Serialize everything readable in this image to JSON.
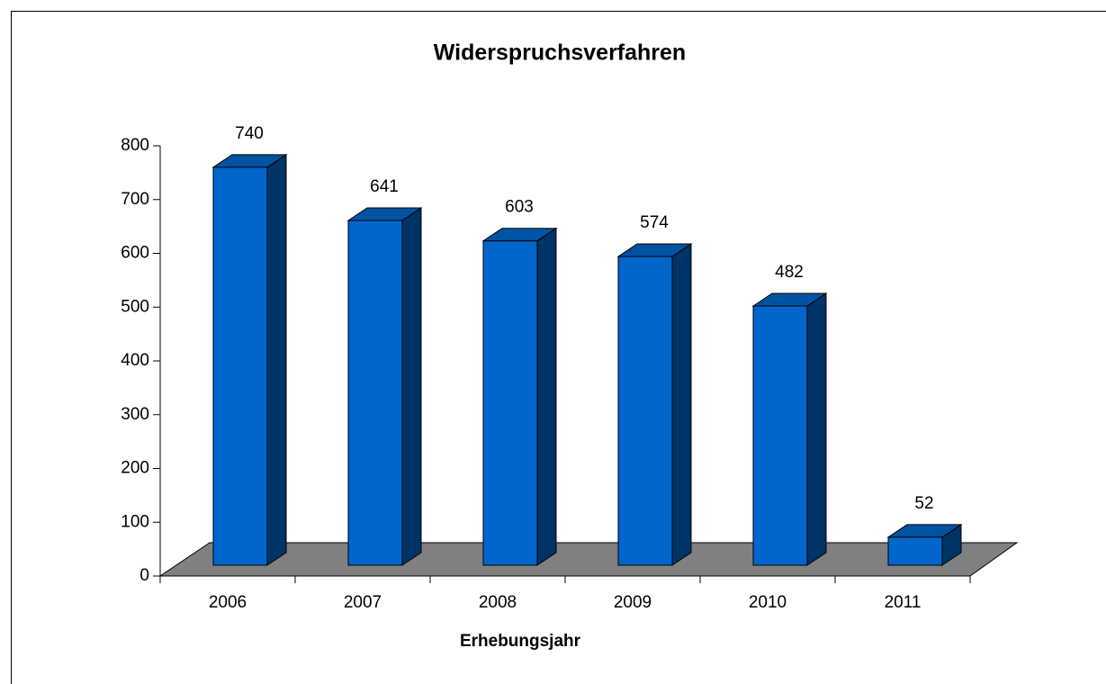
{
  "chart_data": {
    "type": "bar3d",
    "title": "Widerspruchsverfahren",
    "x_label": "Erhebungsjahr",
    "categories": [
      "2006",
      "2007",
      "2008",
      "2009",
      "2010",
      "2011"
    ],
    "values": [
      740,
      641,
      603,
      574,
      482,
      52
    ],
    "color": "#0066cc",
    "ylim": [
      0,
      800
    ],
    "yticks": [
      0,
      100,
      200,
      300,
      400,
      500,
      600,
      700,
      800
    ]
  }
}
